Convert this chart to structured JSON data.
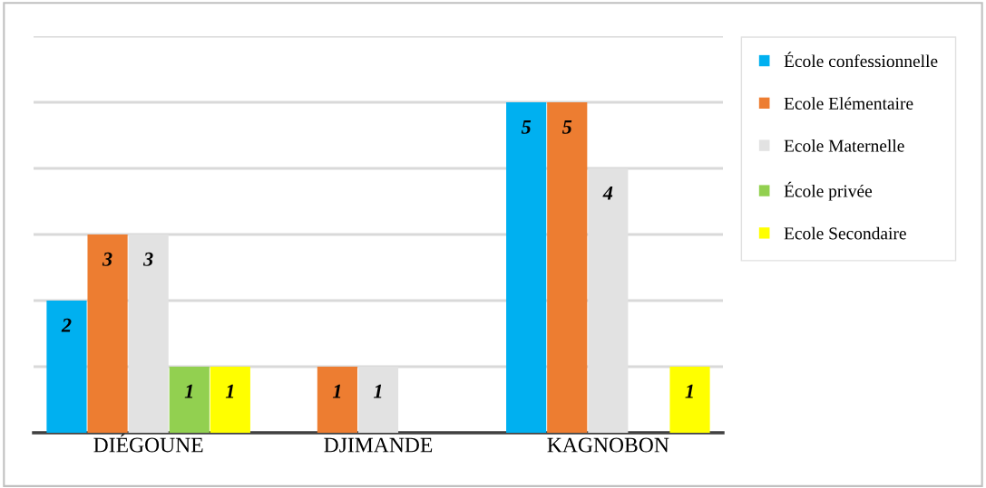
{
  "chart_data": {
    "type": "bar",
    "categories": [
      "DIÉGOUNE",
      "DJIMANDE",
      "KAGNOBON"
    ],
    "series": [
      {
        "name": "École confessionnelle",
        "color": "#00b0f0",
        "values": [
          2,
          null,
          5
        ]
      },
      {
        "name": "Ecole Elémentaire",
        "color": "#ed7d31",
        "values": [
          3,
          1,
          5
        ]
      },
      {
        "name": "Ecole Maternelle",
        "color": "#e2e2e2",
        "values": [
          3,
          1,
          4
        ]
      },
      {
        "name": "École privée",
        "color": "#92d050",
        "values": [
          1,
          null,
          null
        ]
      },
      {
        "name": "Ecole Secondaire",
        "color": "#ffff00",
        "values": [
          1,
          null,
          1
        ]
      }
    ],
    "ylim": [
      0,
      6
    ],
    "yticks": [
      {
        "value": 0,
        "label": null
      },
      {
        "value": 1,
        "label": null
      },
      {
        "value": 2,
        "label": null
      },
      {
        "value": 3,
        "label": null
      },
      {
        "value": 4,
        "label": null
      },
      {
        "value": 5,
        "label": null
      },
      {
        "value": 6,
        "label": null
      }
    ],
    "tick_labels": "x",
    "grid": "y",
    "data_labels": true,
    "legend": "top right"
  }
}
